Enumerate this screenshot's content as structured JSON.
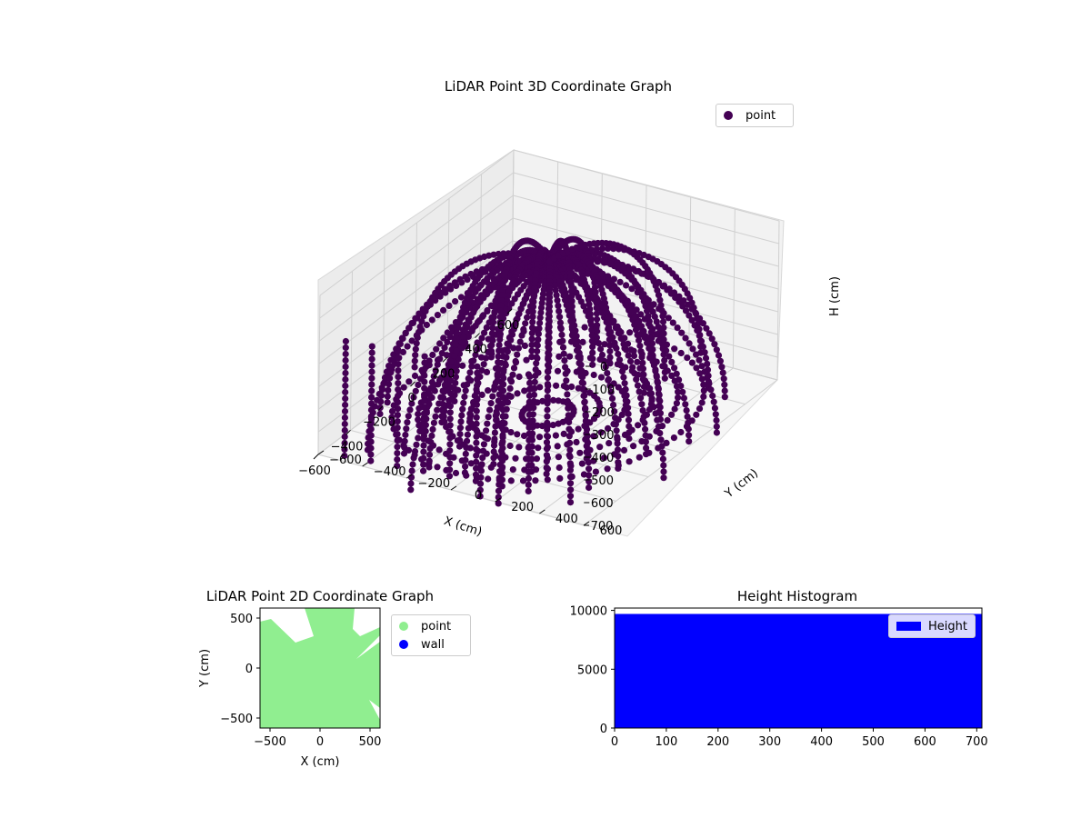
{
  "chart_data": [
    {
      "type": "scatter",
      "projection": "3d",
      "title": "LiDAR Point 3D Coordinate Graph",
      "xlabel": "X (cm)",
      "ylabel": "Y (cm)",
      "zlabel": "H (cm)",
      "x_ticks": [
        "−600",
        "−400",
        "−200",
        "0",
        "200",
        "400",
        "600"
      ],
      "y_ticks": [
        "−600",
        "−400",
        "−200",
        "0",
        "200",
        "400",
        "600"
      ],
      "z_ticks": [
        "0",
        "100",
        "200",
        "300",
        "400",
        "500",
        "600",
        "700"
      ],
      "xlim": [
        -600,
        600
      ],
      "ylim": [
        -600,
        600
      ],
      "zlim": [
        700,
        0
      ],
      "z_inverted": true,
      "legend": [
        "point"
      ],
      "series": [
        {
          "name": "point",
          "color": "#440154"
        }
      ],
      "grid": true,
      "legend_position": "upper-right"
    },
    {
      "type": "scatter",
      "title": "LiDAR Point 2D Coordinate Graph",
      "xlabel": "X (cm)",
      "ylabel": "Y (cm)",
      "x_ticks": [
        "−500",
        "0",
        "500"
      ],
      "y_ticks": [
        "500",
        "0",
        "−500"
      ],
      "xlim": [
        -600,
        600
      ],
      "ylim": [
        -600,
        600
      ],
      "legend": [
        "point",
        "wall"
      ],
      "series": [
        {
          "name": "point",
          "color": "#90ee90"
        },
        {
          "name": "wall",
          "color": "#0000ff"
        }
      ],
      "legend_position": "outside-right"
    },
    {
      "type": "bar",
      "subtype": "histogram",
      "title": "Height Histogram",
      "xlabel": "",
      "ylabel": "",
      "x_ticks": [
        "0",
        "100",
        "200",
        "300",
        "400",
        "500",
        "600",
        "700"
      ],
      "y_ticks": [
        "0",
        "5000",
        "10000"
      ],
      "xlim": [
        0,
        710
      ],
      "ylim": [
        0,
        10200
      ],
      "bins": [
        {
          "x0": 0,
          "x1": 710,
          "count": 9700
        }
      ],
      "legend": [
        "Height"
      ],
      "series": [
        {
          "name": "Height",
          "color": "#0000ff"
        }
      ],
      "legend_position": "upper-right"
    }
  ]
}
